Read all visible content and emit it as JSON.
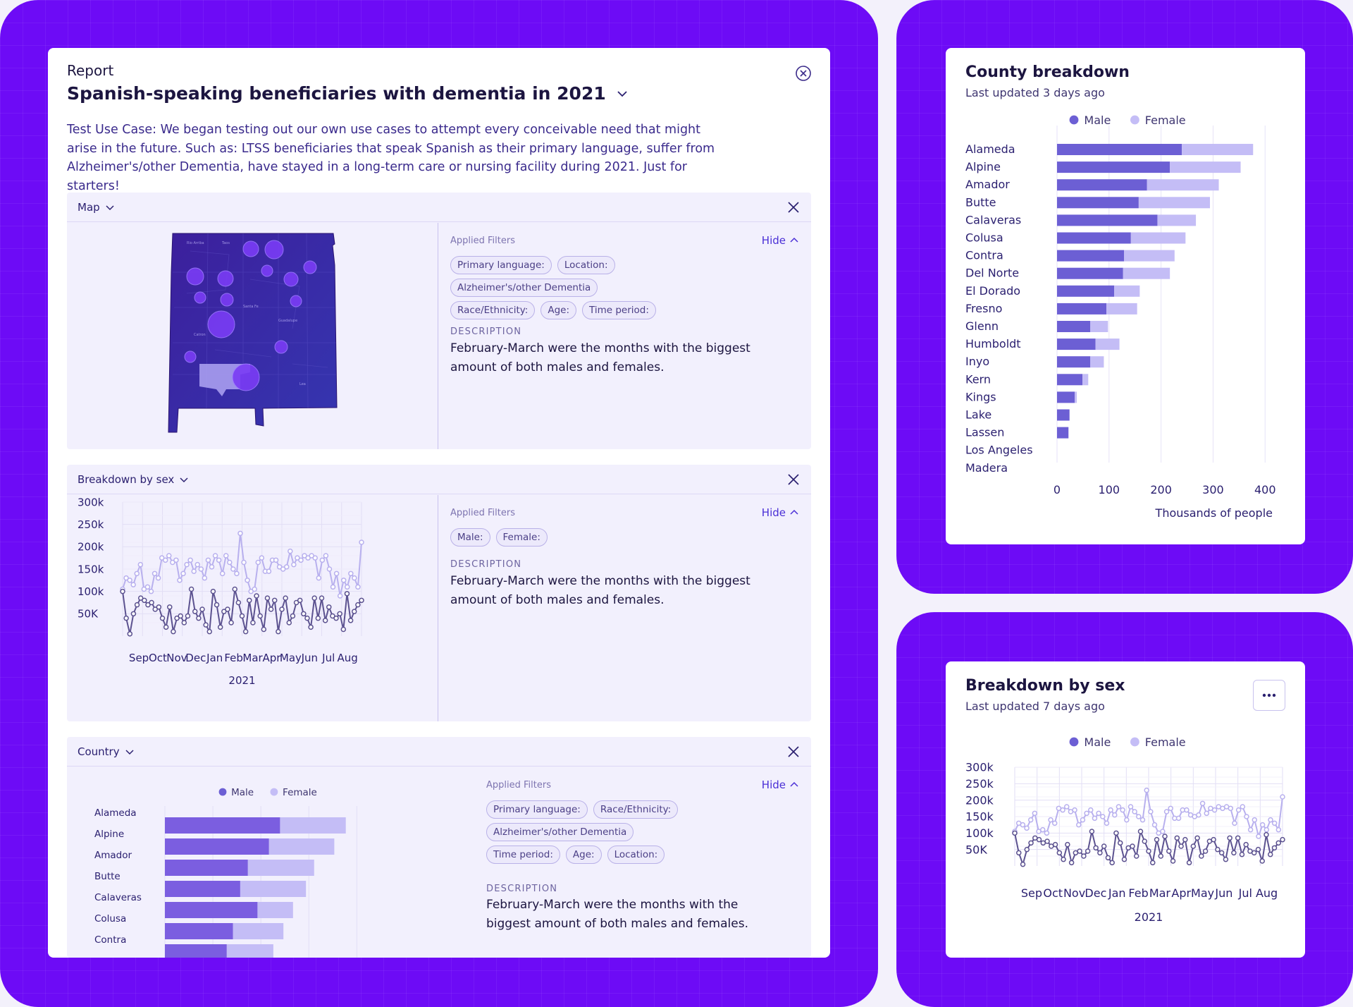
{
  "report": {
    "label": "Report",
    "title": "Spanish-speaking beneficiaries with dementia in 2021",
    "description": "Test Use Case: We began testing out our own use cases to attempt every conceivable need that might arise in the future. Such as: LTSS beneficiaries that speak Spanish as their primary language, suffer from Alzheimer's/other Dementia, have stayed in a long-term care or nursing facility during 2021. Just for starters!"
  },
  "sections": {
    "map": {
      "title": "Map",
      "filters_label": "Applied Filters",
      "hide_label": "Hide",
      "chips": [
        "Primary language:",
        "Location:",
        "Alzheimer's/other Dementia",
        "Race/Ethnicity:",
        "Age:",
        "Time period:"
      ],
      "desc_label": "DESCRIPTION",
      "desc_text": "February-March were the months with the biggest amount of both males and females."
    },
    "sex": {
      "title": "Breakdown by sex",
      "filters_label": "Applied Filters",
      "hide_label": "Hide",
      "chips": [
        "Male:",
        "Female:"
      ],
      "desc_label": "DESCRIPTION",
      "desc_text": "February-March were the months with the biggest amount of both males and females."
    },
    "country": {
      "title": "Country",
      "filters_label": "Applied Filters",
      "hide_label": "Hide",
      "chips": [
        "Primary language:",
        "Race/Ethnicity:",
        "Alzheimer's/other Dementia",
        "Time period:",
        "Age:",
        "Location:"
      ],
      "desc_label": "DESCRIPTION",
      "desc_text": "February-March were the months with the biggest amount of both males and females."
    }
  },
  "county_card": {
    "title": "County breakdown",
    "subtitle": "Last updated 3 days ago"
  },
  "sex_card": {
    "title": "Breakdown by sex",
    "subtitle": "Last updated 7 days ago"
  },
  "colors": {
    "male": "#6c5fd4",
    "female": "#c4bdf6",
    "accent": "#6d0bf6",
    "line_male": "#5c5290",
    "line_female": "#b8b0ee"
  },
  "icons": [
    "chevron-down-icon",
    "close-icon",
    "close-circle-icon",
    "chevron-up-icon",
    "more-icon"
  ],
  "chart_data": [
    {
      "id": "county",
      "type": "bar",
      "stacked": true,
      "orientation": "horizontal",
      "categories": [
        "Alameda",
        "Alpine",
        "Amador",
        "Butte",
        "Calaveras",
        "Colusa",
        "Contra",
        "Del Norte",
        "El Dorado",
        "Fresno",
        "Glenn",
        "Humboldt",
        "Inyo",
        "Kern",
        "Kings",
        "Lake",
        "Lassen",
        "Los Angeles",
        "Madera"
      ],
      "series": [
        {
          "name": "Male",
          "values": [
            240,
            217,
            173,
            157,
            193,
            142,
            129,
            127,
            110,
            95,
            64,
            74,
            64,
            49,
            34,
            24,
            22,
            0,
            0
          ]
        },
        {
          "name": "Female",
          "values": [
            137,
            136,
            138,
            137,
            74,
            105,
            97,
            90,
            49,
            59,
            34,
            46,
            26,
            11,
            4,
            0,
            0,
            0,
            0
          ]
        }
      ],
      "xlabel": "Thousands of people",
      "xticks": [
        0,
        100,
        200,
        300,
        400
      ],
      "xlim": [
        0,
        420
      ],
      "legend": "top",
      "grid": true
    },
    {
      "id": "sex",
      "type": "line",
      "x_labels": [
        "Sep",
        "Oct",
        "Nov",
        "Dec",
        "Jan",
        "Feb",
        "Mar",
        "Apr",
        "May",
        "Jun",
        "Jul",
        "Aug"
      ],
      "xlabel": "2021",
      "yticks": [
        "300k",
        "250k",
        "200k",
        "150k",
        "100k",
        "50K"
      ],
      "ylim": [
        0,
        300000
      ],
      "series": [
        {
          "name": "Male",
          "values": [
            100000,
            40000,
            5000,
            50000,
            70000,
            85000,
            80000,
            70000,
            75000,
            60000,
            65000,
            40000,
            20000,
            65000,
            10000,
            40000,
            45000,
            30000,
            45000,
            105000,
            55000,
            40000,
            60000,
            25000,
            10000,
            100000,
            70000,
            20000,
            55000,
            60000,
            30000,
            105000,
            75000,
            45000,
            10000,
            80000,
            30000,
            90000,
            45000,
            15000,
            85000,
            60000,
            80000,
            10000,
            60000,
            85000,
            30000,
            45000,
            75000,
            80000,
            50000,
            40000,
            20000,
            85000,
            40000,
            85000,
            35000,
            65000,
            45000,
            40000,
            50000,
            15000,
            95000,
            35000,
            55000,
            70000,
            80000
          ]
        },
        {
          "name": "Female",
          "values": [
            105000,
            130000,
            125000,
            115000,
            140000,
            160000,
            105000,
            110000,
            100000,
            140000,
            130000,
            175000,
            170000,
            180000,
            165000,
            170000,
            125000,
            140000,
            160000,
            170000,
            145000,
            160000,
            150000,
            130000,
            170000,
            155000,
            180000,
            170000,
            140000,
            180000,
            165000,
            150000,
            140000,
            230000,
            165000,
            125000,
            100000,
            105000,
            165000,
            175000,
            145000,
            145000,
            170000,
            170000,
            155000,
            150000,
            155000,
            190000,
            160000,
            175000,
            170000,
            180000,
            175000,
            180000,
            175000,
            130000,
            170000,
            180000,
            150000,
            110000,
            140000,
            90000,
            125000,
            110000,
            140000,
            130000,
            110000,
            210000
          ]
        }
      ],
      "legend": "top",
      "grid": true
    },
    {
      "id": "country",
      "type": "bar",
      "stacked": true,
      "orientation": "horizontal",
      "categories": [
        "Alameda",
        "Alpine",
        "Amador",
        "Butte",
        "Calaveras",
        "Colusa",
        "Contra"
      ],
      "series": [
        {
          "name": "Male",
          "values": [
            240,
            217,
            173,
            157,
            193,
            142,
            129
          ]
        },
        {
          "name": "Female",
          "values": [
            137,
            136,
            138,
            137,
            74,
            105,
            97
          ]
        }
      ],
      "legend": "top",
      "grid": true
    }
  ],
  "legend": {
    "male": "Male",
    "female": "Female"
  }
}
